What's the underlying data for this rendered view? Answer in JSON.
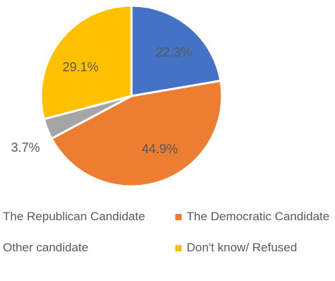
{
  "chart_data": {
    "type": "pie",
    "title": "",
    "legend_position": "bottom",
    "slices": [
      {
        "name": "The Republican Candidate",
        "value": 22.3,
        "label": "22.3%",
        "color": "#4472C4"
      },
      {
        "name": "The Democratic Candidate",
        "value": 44.9,
        "label": "44.9%",
        "color": "#ED7D31"
      },
      {
        "name": "Other candidate",
        "value": 3.7,
        "label": "3.7%",
        "color": "#A5A5A5"
      },
      {
        "name": "Don't know/ Refused",
        "value": 29.1,
        "label": "29.1%",
        "color": "#FFC000"
      }
    ]
  },
  "legend_labels": [
    "The Republican Candidate",
    "The Democratic Candidate",
    "Other candidate",
    "Don't know/ Refused"
  ]
}
